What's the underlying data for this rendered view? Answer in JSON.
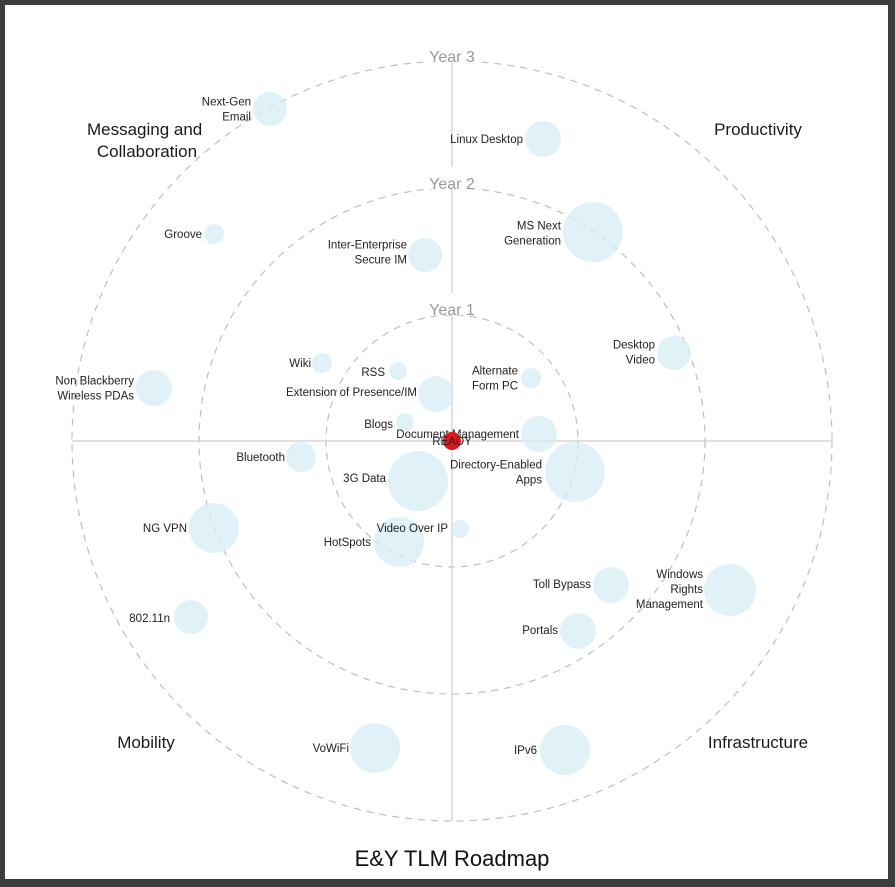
{
  "title": "E&Y TLM Roadmap",
  "rings": [
    "Year 1",
    "Year 2",
    "Year 3"
  ],
  "quadrants": [
    "Messaging and\nCollaboration",
    "Productivity",
    "Mobility",
    "Infrastructure"
  ],
  "center_label": "READY",
  "items": [
    {
      "label": "Next-Gen\nEmail",
      "quadrant": "Messaging and Collaboration",
      "ring": "Year 3",
      "size": "small"
    },
    {
      "label": "Linux Desktop",
      "quadrant": "Productivity",
      "ring": "Year 3",
      "size": "small"
    },
    {
      "label": "Groove",
      "quadrant": "Messaging and Collaboration",
      "ring": "Year 3",
      "size": "tiny"
    },
    {
      "label": "Inter-Enterprise\nSecure IM",
      "quadrant": "Messaging and Collaboration",
      "ring": "Year 2",
      "size": "small"
    },
    {
      "label": "MS Next\nGeneration",
      "quadrant": "Productivity",
      "ring": "Year 2",
      "size": "large"
    },
    {
      "label": "Desktop\nVideo",
      "quadrant": "Productivity",
      "ring": "Year 2",
      "size": "small"
    },
    {
      "label": "Non Blackberry\nWireless PDAs",
      "quadrant": "Messaging and Collaboration",
      "ring": "Year 3",
      "size": "small"
    },
    {
      "label": "Wiki",
      "quadrant": "Messaging and Collaboration",
      "ring": "Year 1",
      "size": "tiny"
    },
    {
      "label": "RSS",
      "quadrant": "Messaging and Collaboration",
      "ring": "Year 1",
      "size": "tiny"
    },
    {
      "label": "Extension of Presence/IM",
      "quadrant": "Messaging and Collaboration",
      "ring": "Year 1",
      "size": "small"
    },
    {
      "label": "Alternate\nForm PC",
      "quadrant": "Productivity",
      "ring": "Year 1",
      "size": "tiny"
    },
    {
      "label": "Blogs",
      "quadrant": "Messaging and Collaboration",
      "ring": "Year 1",
      "size": "tiny"
    },
    {
      "label": "Document Management",
      "quadrant": "Productivity",
      "ring": "Year 1",
      "size": "small"
    },
    {
      "label": "Bluetooth",
      "quadrant": "Mobility",
      "ring": "Year 2",
      "size": "small"
    },
    {
      "label": "3G Data",
      "quadrant": "Mobility",
      "ring": "Year 1",
      "size": "large"
    },
    {
      "label": "Directory-Enabled\nApps",
      "quadrant": "Infrastructure",
      "ring": "Year 2",
      "size": "large"
    },
    {
      "label": "NG VPN",
      "quadrant": "Mobility",
      "ring": "Year 3",
      "size": "medium"
    },
    {
      "label": "Video Over IP",
      "quadrant": "Mobility",
      "ring": "Year 1",
      "size": "tiny"
    },
    {
      "label": "HotSpots",
      "quadrant": "Mobility",
      "ring": "Year 1",
      "size": "medium"
    },
    {
      "label": "Toll Bypass",
      "quadrant": "Infrastructure",
      "ring": "Year 2",
      "size": "small"
    },
    {
      "label": "Windows\nRights\nManagement",
      "quadrant": "Infrastructure",
      "ring": "Year 3",
      "size": "medium"
    },
    {
      "label": "802.11n",
      "quadrant": "Mobility",
      "ring": "Year 3",
      "size": "small"
    },
    {
      "label": "Portals",
      "quadrant": "Infrastructure",
      "ring": "Year 2",
      "size": "small"
    },
    {
      "label": "VoWiFi",
      "quadrant": "Mobility",
      "ring": "Year 3",
      "size": "medium"
    },
    {
      "label": "IPv6",
      "quadrant": "Infrastructure",
      "ring": "Year 3",
      "size": "medium"
    }
  ]
}
